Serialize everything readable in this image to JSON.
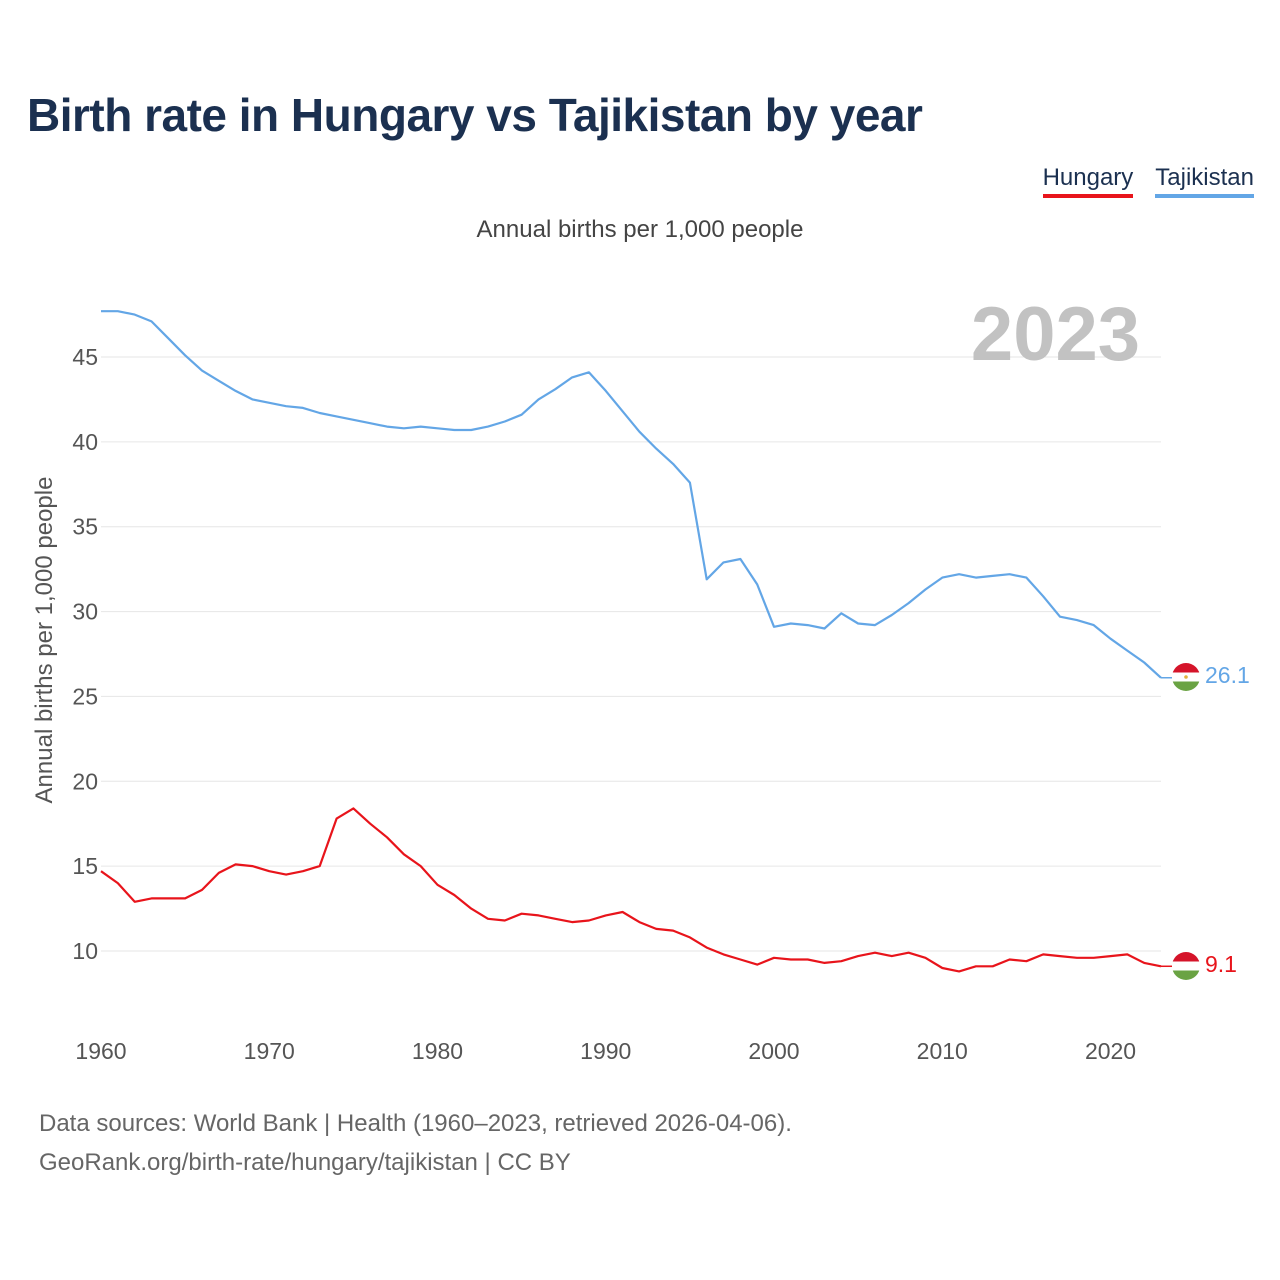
{
  "title": "Birth rate in Hungary vs Tajikistan by year",
  "subtitle": "Annual births per 1,000 people",
  "legend": {
    "hungary": "Hungary",
    "tajikistan": "Tajikistan"
  },
  "year_label": "2023",
  "colors": {
    "hungary": "#e8141b",
    "tajikistan": "#63a6e6",
    "title": "#1b3050"
  },
  "source": {
    "line1": "Data sources: World Bank | Health (1960–2023, retrieved 2026-04-06).",
    "line2": "GeoRank.org/birth-rate/hungary/tajikistan | CC BY"
  },
  "chart_data": {
    "type": "line",
    "title": "Birth rate in Hungary vs Tajikistan by year",
    "subtitle": "Annual births per 1,000 people",
    "xlabel": "",
    "ylabel": "Annual births per 1,000 people",
    "xlim": [
      1960,
      2023
    ],
    "ylim": [
      7,
      48
    ],
    "x_ticks": [
      "1960",
      "1970",
      "1980",
      "1990",
      "2000",
      "2010",
      "2020"
    ],
    "y_ticks": [
      "10",
      "15",
      "20",
      "25",
      "30",
      "35",
      "40",
      "45"
    ],
    "grid": true,
    "legend_position": "top-right",
    "x": [
      1960,
      1961,
      1962,
      1963,
      1964,
      1965,
      1966,
      1967,
      1968,
      1969,
      1970,
      1971,
      1972,
      1973,
      1974,
      1975,
      1976,
      1977,
      1978,
      1979,
      1980,
      1981,
      1982,
      1983,
      1984,
      1985,
      1986,
      1987,
      1988,
      1989,
      1990,
      1991,
      1992,
      1993,
      1994,
      1995,
      1996,
      1997,
      1998,
      1999,
      2000,
      2001,
      2002,
      2003,
      2004,
      2005,
      2006,
      2007,
      2008,
      2009,
      2010,
      2011,
      2012,
      2013,
      2014,
      2015,
      2016,
      2017,
      2018,
      2019,
      2020,
      2021,
      2022,
      2023
    ],
    "series": [
      {
        "name": "Hungary",
        "color": "#e8141b",
        "end_label": "9.1",
        "values": [
          14.7,
          14.0,
          12.9,
          13.1,
          13.1,
          13.1,
          13.6,
          14.6,
          15.1,
          15.0,
          14.7,
          14.5,
          14.7,
          15.0,
          17.8,
          18.4,
          17.5,
          16.7,
          15.7,
          15.0,
          13.9,
          13.3,
          12.5,
          11.9,
          11.8,
          12.2,
          12.1,
          11.9,
          11.7,
          11.8,
          12.1,
          12.3,
          11.7,
          11.3,
          11.2,
          10.8,
          10.2,
          9.8,
          9.5,
          9.2,
          9.6,
          9.5,
          9.5,
          9.3,
          9.4,
          9.7,
          9.9,
          9.7,
          9.9,
          9.6,
          9.0,
          8.8,
          9.1,
          9.1,
          9.5,
          9.4,
          9.8,
          9.7,
          9.6,
          9.6,
          9.7,
          9.8,
          9.3,
          9.1
        ]
      },
      {
        "name": "Tajikistan",
        "color": "#63a6e6",
        "end_label": "26.1",
        "values": [
          47.7,
          47.7,
          47.5,
          47.1,
          46.1,
          45.1,
          44.2,
          43.6,
          43.0,
          42.5,
          42.3,
          42.1,
          42.0,
          41.7,
          41.5,
          41.3,
          41.1,
          40.9,
          40.8,
          40.9,
          40.8,
          40.7,
          40.7,
          40.9,
          41.2,
          41.6,
          42.5,
          43.1,
          43.8,
          44.1,
          43.0,
          41.8,
          40.6,
          39.6,
          38.7,
          37.6,
          31.9,
          32.9,
          33.1,
          31.6,
          29.1,
          29.3,
          29.2,
          29.0,
          29.9,
          29.3,
          29.2,
          29.8,
          30.5,
          31.3,
          32.0,
          32.2,
          32.0,
          32.1,
          32.2,
          32.0,
          30.9,
          29.7,
          29.5,
          29.2,
          28.4,
          27.7,
          27.0,
          26.1
        ]
      }
    ]
  }
}
